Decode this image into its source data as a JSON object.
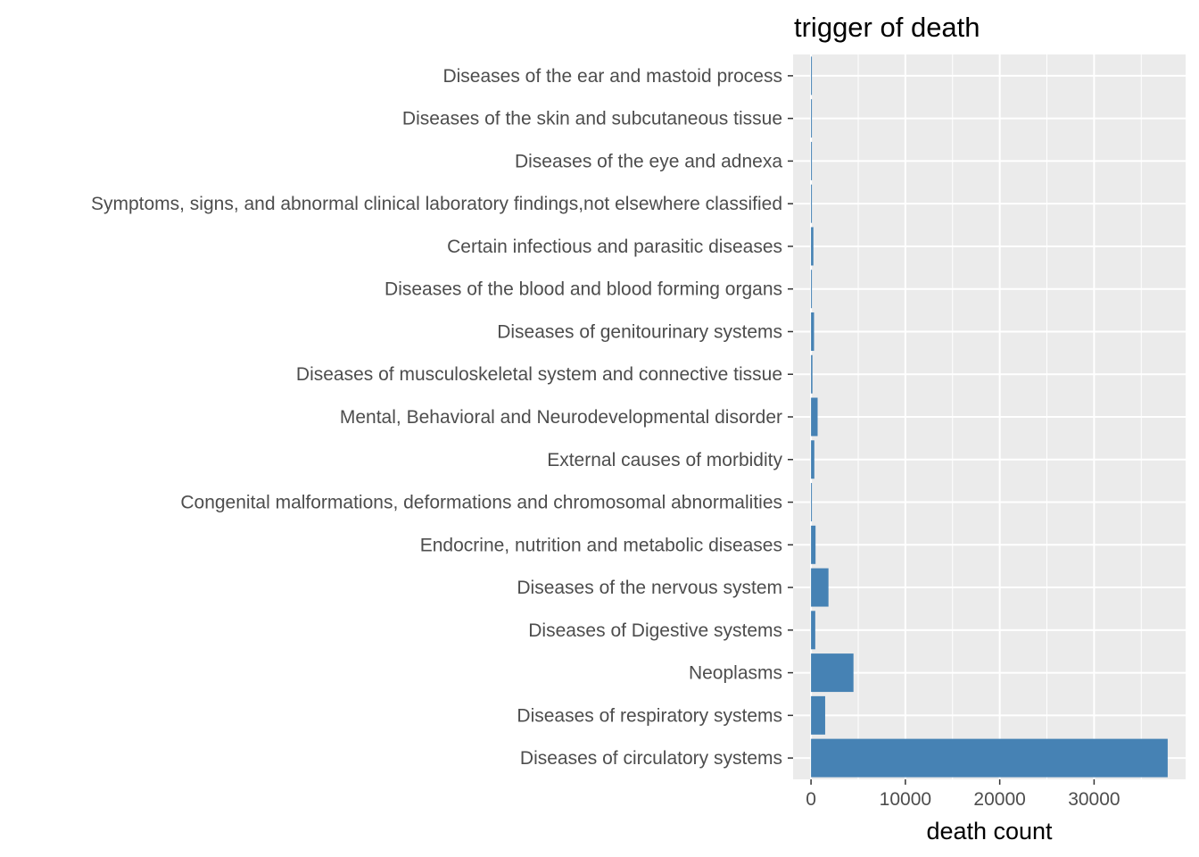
{
  "chart_data": {
    "type": "bar",
    "orientation": "horizontal",
    "title": "trigger of death",
    "xlabel": "death count",
    "ylabel": "",
    "categories": [
      "Diseases of the ear and mastoid process",
      "Diseases of the skin and subcutaneous tissue",
      "Diseases of the eye and adnexa",
      "Symptoms, signs, and abnormal clinical laboratory findings,not elsewhere classified",
      "Certain infectious and parasitic diseases",
      "Diseases of the blood and blood forming organs",
      "Diseases of genitourinary systems",
      "Diseases of musculoskeletal system and connective tissue",
      "Mental, Behavioral and Neurodevelopmental disorder",
      "External causes of morbidity",
      "Congenital malformations, deformations and chromosomal abnormalities",
      "Endocrine, nutrition and metabolic diseases",
      "Diseases of the nervous system",
      "Diseases of Digestive systems",
      "Neoplasms",
      "Diseases of respiratory systems",
      "Diseases of circulatory systems"
    ],
    "values": [
      40,
      90,
      60,
      70,
      250,
      60,
      320,
      150,
      700,
      350,
      50,
      480,
      1850,
      450,
      4500,
      1500,
      37800
    ],
    "xlim": [
      -1900,
      39700
    ],
    "xticks": [
      0,
      10000,
      20000,
      30000
    ],
    "xtick_labels": [
      "0",
      "10000",
      "20000",
      "30000"
    ],
    "grid": true,
    "colors": {
      "bar": "#4682b4",
      "panel_background": "#ebebeb",
      "grid_line": "#ffffff",
      "tick_color": "#333333"
    }
  }
}
